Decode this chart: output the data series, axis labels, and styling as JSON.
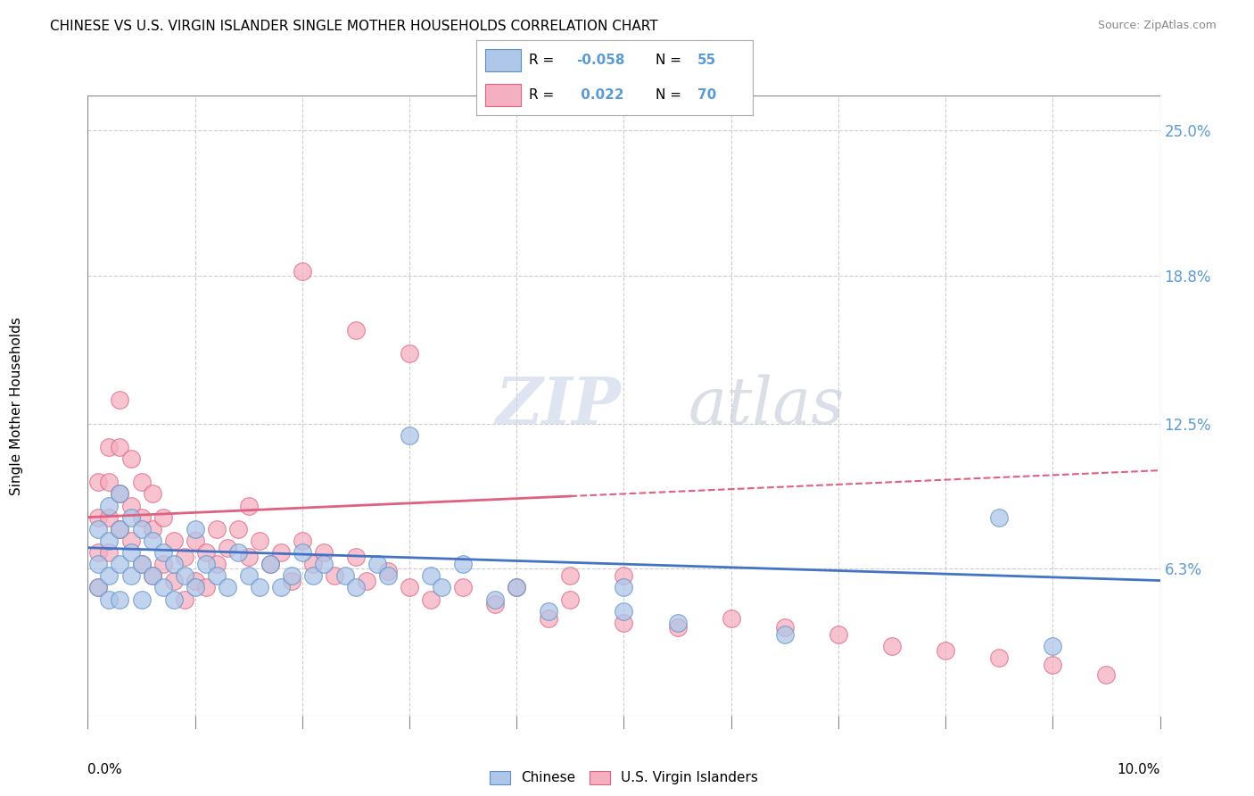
{
  "title": "CHINESE VS U.S. VIRGIN ISLANDER SINGLE MOTHER HOUSEHOLDS CORRELATION CHART",
  "source": "Source: ZipAtlas.com",
  "ylabel": "Single Mother Households",
  "right_yticks": [
    0.063,
    0.125,
    0.188,
    0.25
  ],
  "right_yticklabels": [
    "6.3%",
    "12.5%",
    "18.8%",
    "25.0%"
  ],
  "xlim": [
    0.0,
    0.1
  ],
  "ylim": [
    0.0,
    0.265
  ],
  "watermark": "ZIPatlas",
  "blue_color": "#aec6e8",
  "pink_color": "#f4afc0",
  "blue_edge_color": "#5b8fc9",
  "pink_edge_color": "#e06080",
  "blue_line_color": "#4472c4",
  "pink_line_color": "#e06080",
  "legend_blue_r": "-0.058",
  "legend_blue_n": "55",
  "legend_pink_r": "0.022",
  "legend_pink_n": "70",
  "chinese_x": [
    0.001,
    0.001,
    0.001,
    0.002,
    0.002,
    0.002,
    0.002,
    0.003,
    0.003,
    0.003,
    0.003,
    0.004,
    0.004,
    0.004,
    0.005,
    0.005,
    0.005,
    0.006,
    0.006,
    0.007,
    0.007,
    0.008,
    0.008,
    0.009,
    0.01,
    0.01,
    0.011,
    0.012,
    0.013,
    0.014,
    0.015,
    0.016,
    0.017,
    0.018,
    0.019,
    0.02,
    0.021,
    0.022,
    0.024,
    0.025,
    0.027,
    0.028,
    0.03,
    0.032,
    0.033,
    0.035,
    0.038,
    0.04,
    0.043,
    0.05,
    0.05,
    0.055,
    0.065,
    0.085,
    0.09
  ],
  "chinese_y": [
    0.08,
    0.065,
    0.055,
    0.09,
    0.075,
    0.06,
    0.05,
    0.095,
    0.08,
    0.065,
    0.05,
    0.085,
    0.07,
    0.06,
    0.08,
    0.065,
    0.05,
    0.075,
    0.06,
    0.07,
    0.055,
    0.065,
    0.05,
    0.06,
    0.08,
    0.055,
    0.065,
    0.06,
    0.055,
    0.07,
    0.06,
    0.055,
    0.065,
    0.055,
    0.06,
    0.07,
    0.06,
    0.065,
    0.06,
    0.055,
    0.065,
    0.06,
    0.12,
    0.06,
    0.055,
    0.065,
    0.05,
    0.055,
    0.045,
    0.055,
    0.045,
    0.04,
    0.035,
    0.085,
    0.03
  ],
  "virgin_x": [
    0.001,
    0.001,
    0.001,
    0.001,
    0.002,
    0.002,
    0.002,
    0.002,
    0.003,
    0.003,
    0.003,
    0.003,
    0.004,
    0.004,
    0.004,
    0.005,
    0.005,
    0.005,
    0.006,
    0.006,
    0.006,
    0.007,
    0.007,
    0.008,
    0.008,
    0.009,
    0.009,
    0.01,
    0.01,
    0.011,
    0.011,
    0.012,
    0.012,
    0.013,
    0.014,
    0.015,
    0.015,
    0.016,
    0.017,
    0.018,
    0.019,
    0.02,
    0.021,
    0.022,
    0.023,
    0.025,
    0.026,
    0.028,
    0.03,
    0.032,
    0.035,
    0.038,
    0.04,
    0.043,
    0.05,
    0.055,
    0.06,
    0.065,
    0.07,
    0.075,
    0.08,
    0.085,
    0.09,
    0.095,
    0.02,
    0.025,
    0.03,
    0.045,
    0.045,
    0.05
  ],
  "virgin_y": [
    0.1,
    0.085,
    0.07,
    0.055,
    0.115,
    0.1,
    0.085,
    0.07,
    0.135,
    0.115,
    0.095,
    0.08,
    0.11,
    0.09,
    0.075,
    0.1,
    0.085,
    0.065,
    0.095,
    0.08,
    0.06,
    0.085,
    0.065,
    0.075,
    0.058,
    0.068,
    0.05,
    0.075,
    0.058,
    0.07,
    0.055,
    0.08,
    0.065,
    0.072,
    0.08,
    0.09,
    0.068,
    0.075,
    0.065,
    0.07,
    0.058,
    0.075,
    0.065,
    0.07,
    0.06,
    0.068,
    0.058,
    0.062,
    0.055,
    0.05,
    0.055,
    0.048,
    0.055,
    0.042,
    0.04,
    0.038,
    0.042,
    0.038,
    0.035,
    0.03,
    0.028,
    0.025,
    0.022,
    0.018,
    0.19,
    0.165,
    0.155,
    0.06,
    0.05,
    0.06
  ],
  "blue_trend_y0": 0.072,
  "blue_trend_y1": 0.058,
  "pink_trend_y0": 0.085,
  "pink_trend_solid_end_x": 0.045,
  "pink_trend_y1": 0.105
}
